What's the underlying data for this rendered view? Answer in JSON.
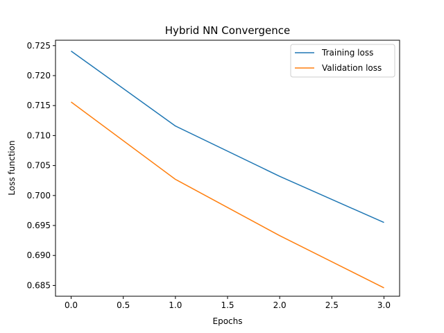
{
  "chart_data": {
    "type": "line",
    "title": "Hybrid NN Convergence",
    "xlabel": "Epochs",
    "ylabel": "Loss function",
    "x": [
      0,
      1,
      2,
      3
    ],
    "xlim": [
      -0.15,
      3.15
    ],
    "ylim": [
      0.6832,
      0.7259
    ],
    "xticks": [
      0.0,
      0.5,
      1.0,
      1.5,
      2.0,
      2.5,
      3.0
    ],
    "xtick_labels": [
      "0.0",
      "0.5",
      "1.0",
      "1.5",
      "2.0",
      "2.5",
      "3.0"
    ],
    "yticks": [
      0.685,
      0.69,
      0.695,
      0.7,
      0.705,
      0.71,
      0.715,
      0.72,
      0.725
    ],
    "ytick_labels": [
      "0.685",
      "0.690",
      "0.695",
      "0.700",
      "0.705",
      "0.710",
      "0.715",
      "0.720",
      "0.725"
    ],
    "grid": false,
    "legend_position": "top-right",
    "series": [
      {
        "name": "Training loss",
        "values": [
          0.7241,
          0.7116,
          0.7032,
          0.6955
        ],
        "color": "#1f77b4"
      },
      {
        "name": "Validation loss",
        "values": [
          0.7156,
          0.7027,
          0.6933,
          0.6846
        ],
        "color": "#ff7f0e"
      }
    ]
  }
}
